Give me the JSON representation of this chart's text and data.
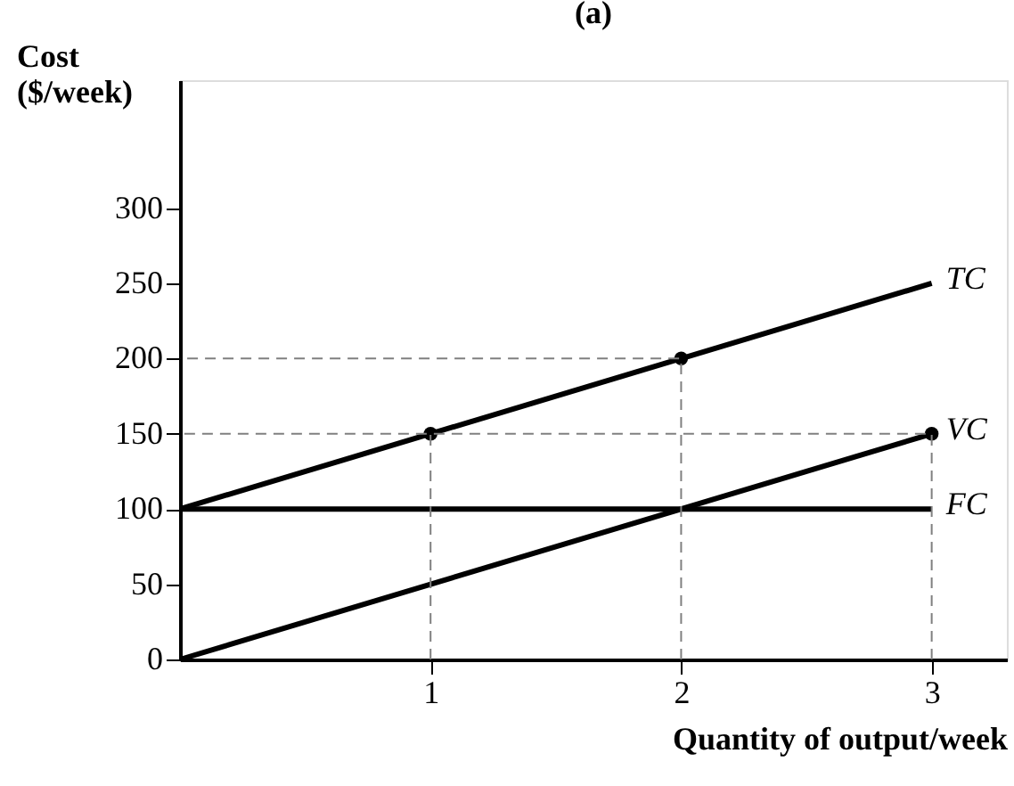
{
  "chart_data": {
    "type": "line",
    "title": "(a)",
    "xlabel": "Quantity of output/week",
    "ylabel": "Cost\n($/week)",
    "xlim": [
      0,
      3.3
    ],
    "ylim": [
      0,
      385
    ],
    "xticks": [
      1,
      2,
      3
    ],
    "yticks": [
      0,
      50,
      100,
      150,
      200,
      250,
      300
    ],
    "grid": false,
    "legend": false,
    "marker": "none",
    "line_style": "solid",
    "series": [
      {
        "name": "TC",
        "type": "line",
        "color": "#000000",
        "x": [
          0,
          3
        ],
        "values": [
          100,
          250
        ]
      },
      {
        "name": "VC",
        "type": "line",
        "color": "#000000",
        "x": [
          0,
          3
        ],
        "values": [
          0,
          150
        ]
      },
      {
        "name": "FC",
        "type": "line",
        "color": "#000000",
        "x": [
          0,
          3
        ],
        "values": [
          100,
          100
        ]
      },
      {
        "type": "scatter",
        "marker": "circle",
        "color": "#000000",
        "x": [
          1,
          2,
          3
        ],
        "values": [
          150,
          200,
          150
        ]
      },
      {
        "type": "line",
        "line_style": "dashed",
        "color": "#808080",
        "x": [
          1,
          1
        ],
        "values": [
          0,
          150
        ]
      },
      {
        "type": "line",
        "line_style": "dashed",
        "color": "#808080",
        "x": [
          2,
          2,
          0
        ],
        "values": [
          0,
          200,
          200
        ]
      },
      {
        "type": "line",
        "line_style": "dashed",
        "color": "#808080",
        "x": [
          3,
          3,
          0
        ],
        "values": [
          0,
          150,
          150
        ]
      }
    ]
  }
}
